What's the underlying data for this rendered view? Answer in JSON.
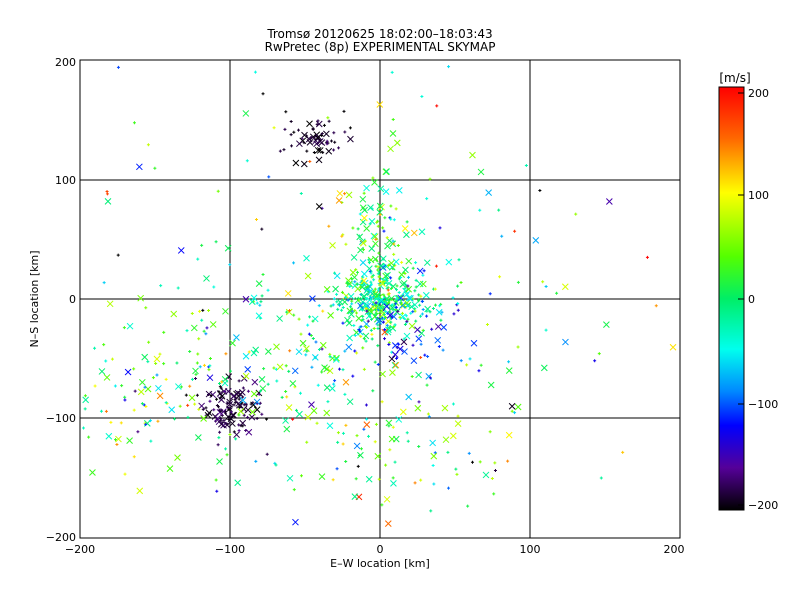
{
  "chart_data": {
    "type": "scatter",
    "title": "Tromsø 20120625 18:02:00–18:03:43",
    "subtitle": "RwPretec (8p) EXPERIMENTAL SKYMAP",
    "xlabel": "E–W location [km]",
    "ylabel": "N–S location [km]",
    "xlim": [
      -200,
      200
    ],
    "ylim": [
      -200,
      200
    ],
    "xticks": [
      "−200",
      "−100",
      "0",
      "100",
      "200"
    ],
    "yticks": [
      "−200",
      "−100",
      "0",
      "100",
      "200"
    ],
    "grid": true,
    "markers": [
      "+",
      "x"
    ],
    "colorbar": {
      "label": "[m/s]",
      "min": -200,
      "max": 200,
      "ticks": [
        "200",
        "100",
        "0",
        "−100",
        "−200"
      ],
      "colors": [
        "#ff0000",
        "#ffaa00",
        "#ffff00",
        "#00ee00",
        "#00ffcc",
        "#00aaff",
        "#0000ff",
        "#6600cc",
        "#000000"
      ]
    },
    "clusters": [
      {
        "x": 0,
        "y": 0,
        "spread_x": 15,
        "spread_y": 15,
        "count": 320,
        "vel": -10,
        "vel_spread": 90
      },
      {
        "x": 0,
        "y": 60,
        "spread_x": 12,
        "spread_y": 25,
        "count": 80,
        "vel": 30,
        "vel_spread": 90
      },
      {
        "x": -100,
        "y": -90,
        "spread_x": 10,
        "spread_y": 12,
        "count": 120,
        "vel": -185,
        "vel_spread": 25
      },
      {
        "x": -45,
        "y": 135,
        "spread_x": 12,
        "spread_y": 10,
        "count": 60,
        "vel": -190,
        "vel_spread": 20
      },
      {
        "x": -50,
        "y": -50,
        "spread_x": 50,
        "spread_y": 35,
        "count": 160,
        "vel": 0,
        "vel_spread": 140
      },
      {
        "x": 0,
        "y": -130,
        "spread_x": 40,
        "spread_y": 25,
        "count": 60,
        "vel": 40,
        "vel_spread": 120
      },
      {
        "x": -150,
        "y": -80,
        "spread_x": 30,
        "spread_y": 40,
        "count": 80,
        "vel": 20,
        "vel_spread": 150
      },
      {
        "x": 20,
        "y": -30,
        "spread_x": 20,
        "spread_y": 20,
        "count": 60,
        "vel": -120,
        "vel_spread": 60
      },
      {
        "x": 0,
        "y": 0,
        "spread_x": 110,
        "spread_y": 110,
        "count": 220,
        "vel": 0,
        "vel_spread": 200
      }
    ]
  }
}
